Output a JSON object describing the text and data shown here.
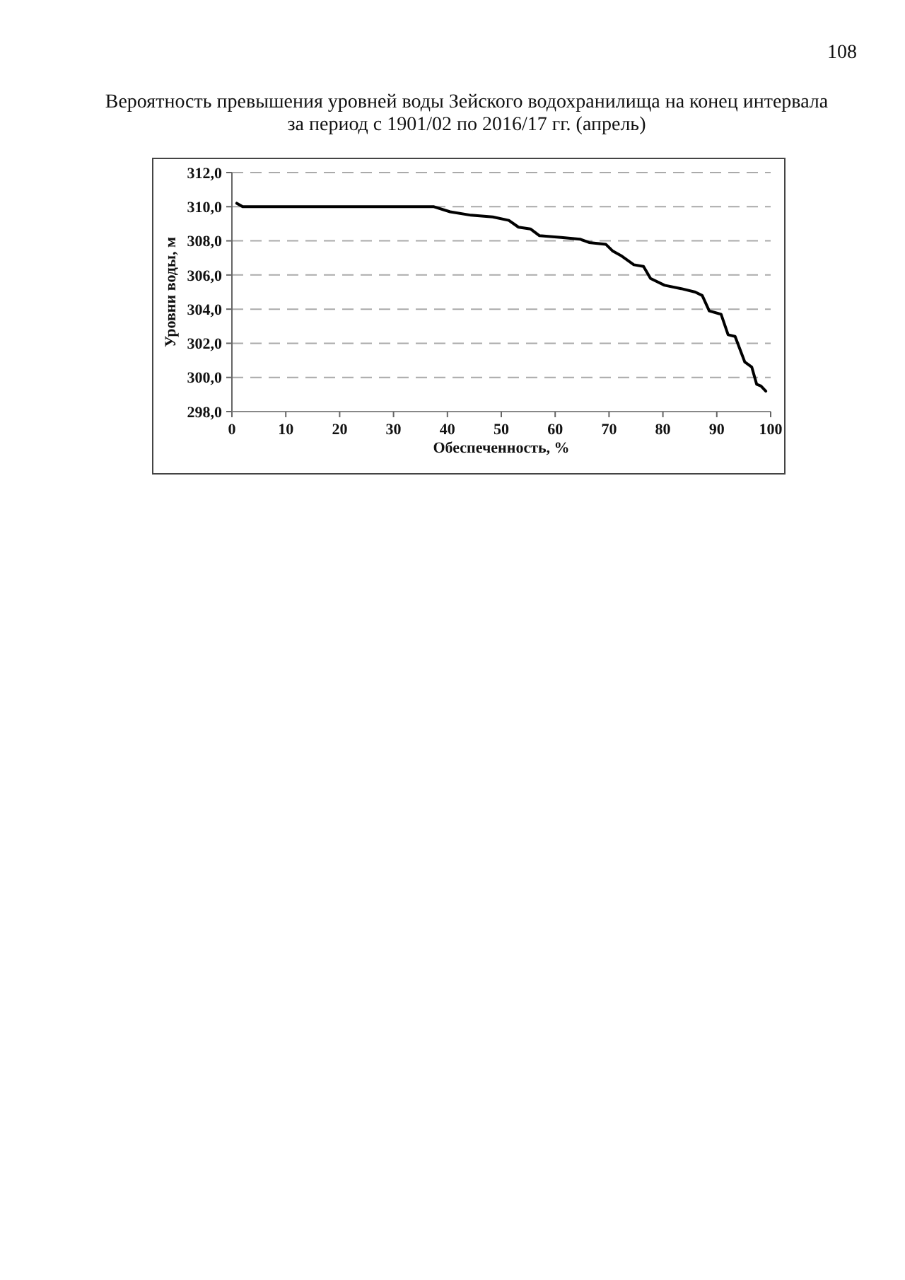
{
  "chart_data": {
    "type": "line",
    "title": "Вероятность превышения уровней воды Зейского водохранилища на конец интервала",
    "subtitle": "за период с 1901/02 по 2016/17 гг. (апрель)",
    "xlabel": "Обеспеченность, %",
    "ylabel": "Уровни воды, м",
    "annotations": [
      "108"
    ],
    "x": [
      0.9,
      2,
      10,
      20,
      30,
      37.5,
      40.5,
      44.4,
      48.4,
      51.4,
      53.2,
      55.4,
      57.1,
      61.1,
      64.6,
      66.3,
      69.4,
      70.7,
      72.4,
      74.6,
      76.4,
      77.7,
      80.3,
      83.4,
      86,
      87.3,
      88.6,
      90.8,
      92.1,
      93.4,
      95.2,
      96.5,
      97.4,
      98.2,
      99.1
    ],
    "values": [
      310.2,
      310.0,
      310.0,
      310.0,
      310.0,
      310.0,
      309.7,
      309.5,
      309.4,
      309.2,
      308.8,
      308.7,
      308.3,
      308.2,
      308.1,
      307.9,
      307.8,
      307.4,
      307.1,
      306.6,
      306.5,
      305.8,
      305.4,
      305.2,
      305.0,
      304.8,
      303.9,
      303.7,
      302.5,
      302.4,
      300.9,
      300.6,
      299.6,
      299.5,
      299.2
    ],
    "color": "#000000",
    "line_style": "solid",
    "xlim": [
      0,
      100
    ],
    "xticks": [
      0,
      10,
      20,
      30,
      40,
      50,
      60,
      70,
      80,
      90,
      100
    ],
    "ylim": [
      298,
      312
    ],
    "yticks": [
      {
        "value": 298,
        "label": "298,0"
      },
      {
        "value": 300,
        "label": "300,0"
      },
      {
        "value": 302,
        "label": "302,0"
      },
      {
        "value": 304,
        "label": "304,0"
      },
      {
        "value": 306,
        "label": "306,0"
      },
      {
        "value": 308,
        "label": "308,0"
      },
      {
        "value": 310,
        "label": "310,0"
      },
      {
        "value": 312,
        "label": "312,0"
      }
    ],
    "grid": "y"
  }
}
